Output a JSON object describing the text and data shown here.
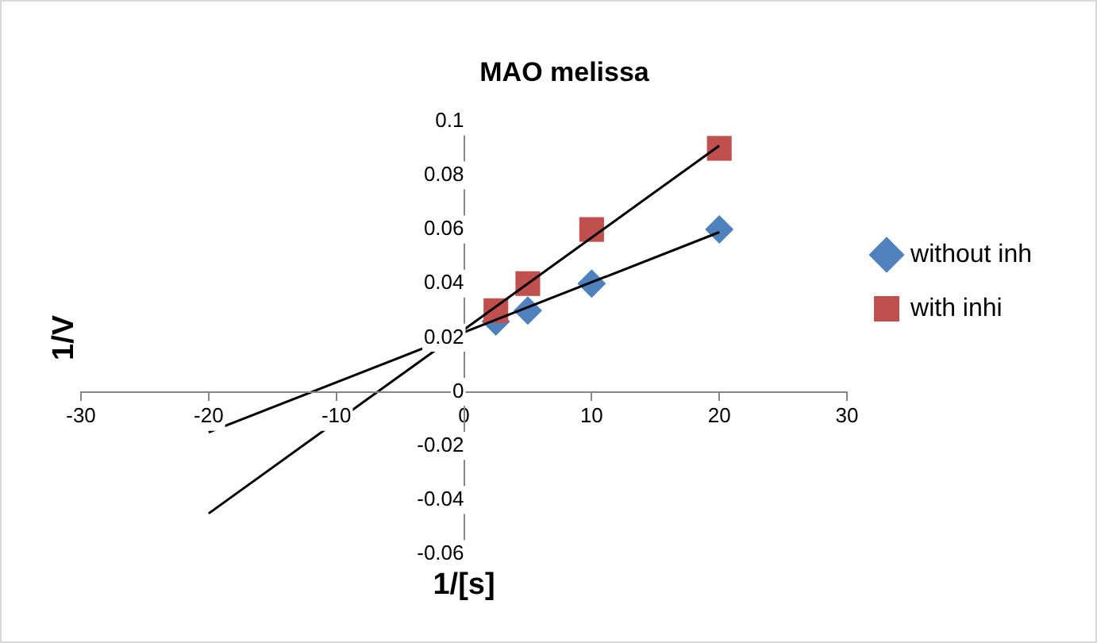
{
  "chart_data": {
    "type": "scatter",
    "title": "MAO melissa",
    "xlabel": "1/[s]",
    "ylabel": "1/V",
    "xlim": [
      -30,
      30
    ],
    "xticks": [
      -30,
      -20,
      -10,
      0,
      10,
      20,
      30
    ],
    "ylim": [
      -0.06,
      0.1
    ],
    "yticks": [
      -0.06,
      -0.04,
      -0.02,
      0,
      0.02,
      0.04,
      0.06,
      0.08,
      0.1
    ],
    "grid": false,
    "legend": "right",
    "series": [
      {
        "name": "without inh",
        "color": "#4f81bd",
        "marker": "diamond",
        "x": [
          2.5,
          5,
          10,
          20
        ],
        "values": [
          0.026,
          0.03,
          0.04,
          0.06
        ]
      },
      {
        "name": "with inhi",
        "color": "#c0504d",
        "marker": "square",
        "x": [
          2.5,
          5,
          10,
          20
        ],
        "values": [
          0.03,
          0.04,
          0.06,
          0.09
        ]
      },
      {
        "type": "line",
        "color": "#000000",
        "marker": "none",
        "x": [
          -20,
          20
        ],
        "values": [
          -0.015,
          0.059
        ]
      },
      {
        "type": "line",
        "color": "#000000",
        "marker": "none",
        "x": [
          -20,
          20
        ],
        "values": [
          -0.045,
          0.091
        ]
      }
    ]
  }
}
